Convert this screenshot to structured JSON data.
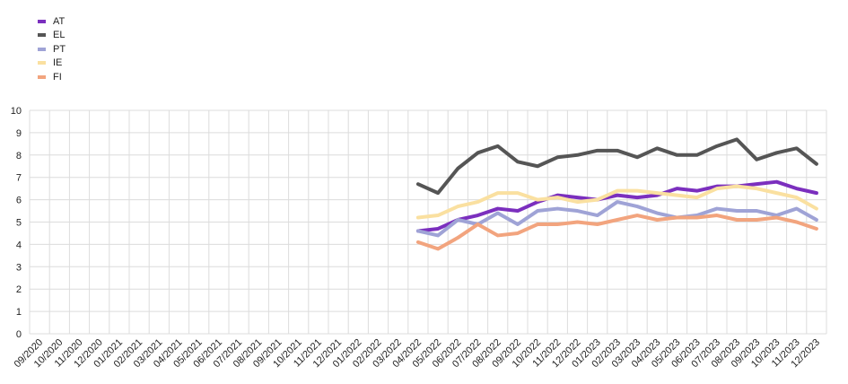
{
  "chart_data": {
    "type": "line",
    "title": "",
    "xlabel": "",
    "ylabel": "",
    "ylim": [
      0,
      10
    ],
    "yticks": [
      0,
      1,
      2,
      3,
      4,
      5,
      6,
      7,
      8,
      9,
      10
    ],
    "grid": true,
    "legend_position": "top-left",
    "categories": [
      "09/2020",
      "10/2020",
      "11/2020",
      "12/2020",
      "01/2021",
      "02/2021",
      "03/2021",
      "04/2021",
      "05/2021",
      "06/2021",
      "07/2021",
      "08/2021",
      "09/2021",
      "10/2021",
      "11/2021",
      "12/2021",
      "01/2022",
      "02/2022",
      "03/2022",
      "04/2022",
      "05/2022",
      "06/2022",
      "07/2022",
      "08/2022",
      "09/2022",
      "10/2022",
      "11/2022",
      "12/2022",
      "01/2023",
      "02/2023",
      "03/2023",
      "04/2023",
      "05/2023",
      "06/2023",
      "07/2023",
      "08/2023",
      "09/2023",
      "10/2023",
      "11/2023",
      "12/2023"
    ],
    "series": [
      {
        "name": "AT",
        "color": "#7b2fbe",
        "values": [
          null,
          null,
          null,
          null,
          null,
          null,
          null,
          null,
          null,
          null,
          null,
          null,
          null,
          null,
          null,
          null,
          null,
          null,
          null,
          4.6,
          4.7,
          5.1,
          5.3,
          5.6,
          5.5,
          5.9,
          6.2,
          6.1,
          6.0,
          6.2,
          6.1,
          6.2,
          6.5,
          6.4,
          6.6,
          6.6,
          6.7,
          6.8,
          6.5,
          6.3
        ]
      },
      {
        "name": "EL",
        "color": "#555555",
        "values": [
          null,
          null,
          null,
          null,
          null,
          null,
          null,
          null,
          null,
          null,
          null,
          null,
          null,
          null,
          null,
          null,
          null,
          null,
          null,
          6.7,
          6.3,
          7.4,
          8.1,
          8.4,
          7.7,
          7.5,
          7.9,
          8.0,
          8.2,
          8.2,
          7.9,
          8.3,
          8.0,
          8.0,
          8.4,
          8.7,
          7.8,
          8.1,
          8.3,
          7.6
        ]
      },
      {
        "name": "PT",
        "color": "#9fa3d6",
        "values": [
          null,
          null,
          null,
          null,
          null,
          null,
          null,
          null,
          null,
          null,
          null,
          null,
          null,
          null,
          null,
          null,
          null,
          null,
          null,
          4.6,
          4.4,
          5.1,
          4.9,
          5.4,
          4.9,
          5.5,
          5.6,
          5.5,
          5.3,
          5.9,
          5.7,
          5.4,
          5.2,
          5.3,
          5.6,
          5.5,
          5.5,
          5.3,
          5.6,
          5.1
        ]
      },
      {
        "name": "IE",
        "color": "#fae0a0",
        "values": [
          null,
          null,
          null,
          null,
          null,
          null,
          null,
          null,
          null,
          null,
          null,
          null,
          null,
          null,
          null,
          null,
          null,
          null,
          null,
          5.2,
          5.3,
          5.7,
          5.9,
          6.3,
          6.3,
          6.0,
          6.1,
          5.9,
          6.0,
          6.4,
          6.4,
          6.3,
          6.2,
          6.1,
          6.5,
          6.6,
          6.5,
          6.3,
          6.1,
          5.6
        ]
      },
      {
        "name": "FI",
        "color": "#f2a47e",
        "values": [
          null,
          null,
          null,
          null,
          null,
          null,
          null,
          null,
          null,
          null,
          null,
          null,
          null,
          null,
          null,
          null,
          null,
          null,
          null,
          4.1,
          3.8,
          4.3,
          4.9,
          4.4,
          4.5,
          4.9,
          4.9,
          5.0,
          4.9,
          5.1,
          5.3,
          5.1,
          5.2,
          5.2,
          5.3,
          5.1,
          5.1,
          5.2,
          5.0,
          4.7
        ]
      }
    ]
  }
}
